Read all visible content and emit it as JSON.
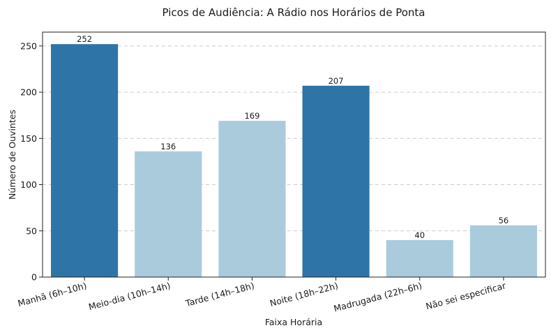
{
  "chart_data": {
    "type": "bar",
    "title": "Picos de Audiência: A Rádio nos Horários de Ponta",
    "xlabel": "Faixa Horária",
    "ylabel": "Número de Ouvintes",
    "categories": [
      "Manhã (6h–10h)",
      "Meio-dia (10h–14h)",
      "Tarde (14h–18h)",
      "Noite (18h–22h)",
      "Madrugada (22h–6h)",
      "Não sei especificar"
    ],
    "values": [
      252,
      136,
      169,
      207,
      40,
      56
    ],
    "data_labels": [
      "252",
      "136",
      "169",
      "207",
      "40",
      "56"
    ],
    "highlighted": [
      true,
      false,
      false,
      true,
      false,
      false
    ],
    "ylim": [
      0,
      265
    ],
    "yticks": [
      0,
      50,
      100,
      150,
      200,
      250
    ],
    "grid": true,
    "colors": {
      "highlight": "#2e74a6",
      "normal": "#aacbdc"
    }
  }
}
